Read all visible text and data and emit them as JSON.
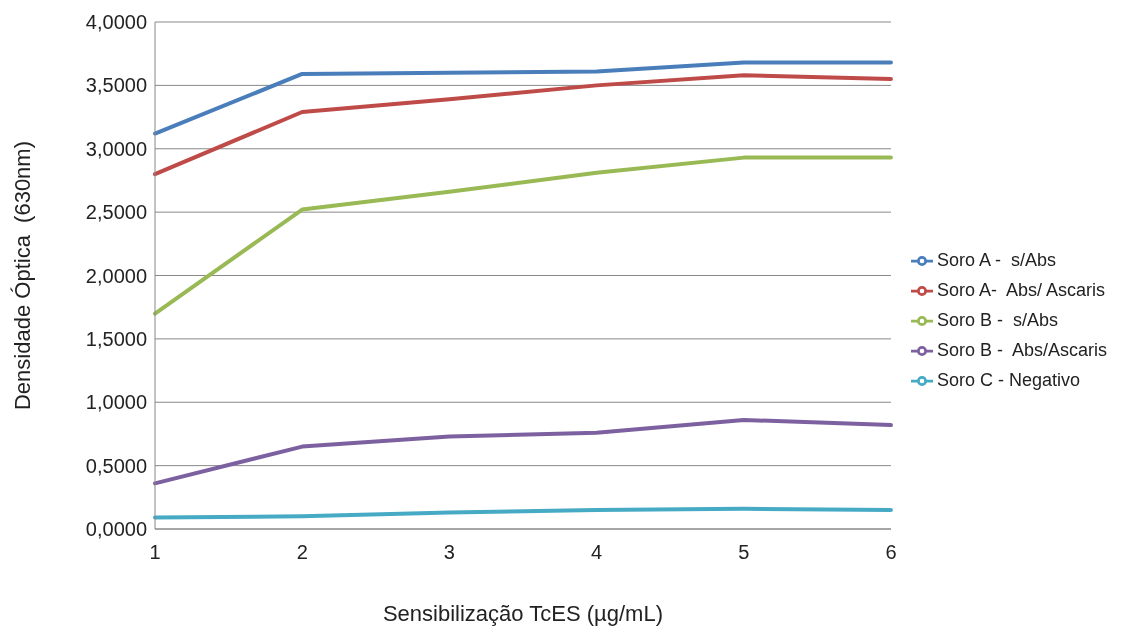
{
  "chart_data": {
    "type": "line",
    "xlabel": "Sensibilização TcES (µg/mL)",
    "ylabel": "Densidade Óptica  (630nm)",
    "categories": [
      "1",
      "2",
      "3",
      "4",
      "5",
      "6"
    ],
    "series": [
      {
        "name": "Soro A -  s/Abs",
        "color": "#4a7ebb",
        "values": [
          3.12,
          3.59,
          3.6,
          3.61,
          3.68,
          3.68
        ]
      },
      {
        "name": "Soro A-  Abs/ Ascaris",
        "color": "#be4b48",
        "values": [
          2.8,
          3.29,
          3.39,
          3.5,
          3.58,
          3.55
        ]
      },
      {
        "name": "Soro B -  s/Abs",
        "color": "#98b954",
        "values": [
          1.7,
          2.52,
          2.66,
          2.81,
          2.93,
          2.93
        ]
      },
      {
        "name": "Soro B -  Abs/Ascaris",
        "color": "#7d60a0",
        "values": [
          0.36,
          0.65,
          0.73,
          0.76,
          0.86,
          0.82
        ]
      },
      {
        "name": "Soro C - Negativo",
        "color": "#46aac5",
        "values": [
          0.09,
          0.1,
          0.13,
          0.15,
          0.16,
          0.15
        ]
      }
    ],
    "ylim": [
      0,
      4
    ],
    "yticks": [
      {
        "value": 0,
        "label": "0,0000"
      },
      {
        "value": 0.5,
        "label": "0,5000"
      },
      {
        "value": 1,
        "label": "1,0000"
      },
      {
        "value": 1.5,
        "label": "1,5000"
      },
      {
        "value": 2,
        "label": "2,0000"
      },
      {
        "value": 2.5,
        "label": "2,5000"
      },
      {
        "value": 3,
        "label": "3,0000"
      },
      {
        "value": 3.5,
        "label": "3,5000"
      },
      {
        "value": 4,
        "label": "4,0000"
      }
    ],
    "grid": "y",
    "legend": "right",
    "marker": "none",
    "line_style": "solid"
  }
}
